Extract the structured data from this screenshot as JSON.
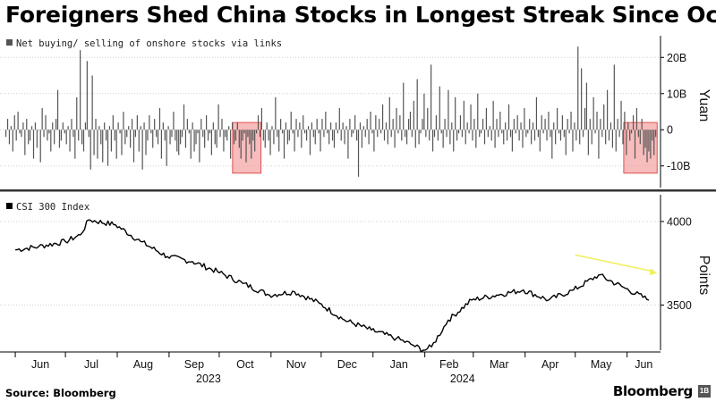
{
  "title": "Foreigners Shed China Stocks in Longest Streak Since Oct.",
  "source": "Source: Bloomberg",
  "brand": "Bloomberg",
  "brand_badge": "1B",
  "colors": {
    "bar": "#555555",
    "line": "#000000",
    "highlight_fill": "#f4a6a6",
    "highlight_stroke": "#e05050",
    "arrow": "#f0f060"
  },
  "chart_data": [
    {
      "type": "bar",
      "legend": "Net buying/ selling of onshore stocks via links",
      "ylabel": "Yuan",
      "ylim": [
        -16,
        26
      ],
      "yticks": [
        {
          "value": 20,
          "label": "20B"
        },
        {
          "value": 10,
          "label": "10B"
        },
        {
          "value": 0,
          "label": "0"
        },
        {
          "value": -10,
          "label": "-10B"
        }
      ],
      "series": [
        {
          "values": [
            -2,
            3,
            -4,
            1,
            -6,
            4,
            -3,
            5,
            -1,
            -2,
            2,
            -7,
            3,
            -4,
            -3,
            1,
            -8,
            2,
            -5,
            0,
            -9,
            6,
            -2,
            4,
            -3,
            -1,
            -6,
            2,
            -4,
            3,
            11,
            -5,
            -3,
            2,
            -1,
            -4,
            1,
            -6,
            3,
            -2,
            -8,
            9,
            -3,
            22,
            -4,
            -6,
            2,
            19,
            -2,
            -11,
            15,
            -7,
            3,
            -8,
            1,
            -4,
            -9,
            2,
            -3,
            -10,
            1,
            -6,
            4,
            -3,
            -8,
            2,
            -1,
            -7,
            5,
            -4,
            -2,
            1,
            -5,
            3,
            -9,
            -2,
            4,
            -6,
            1,
            -11,
            2,
            -7,
            -3,
            4,
            -1,
            -5,
            3,
            -2,
            -4,
            6,
            -8,
            2,
            -3,
            -10,
            1,
            -4,
            -2,
            5,
            -3,
            -6,
            -7,
            -4,
            -2,
            7,
            -5,
            3,
            -1,
            -8,
            2,
            -6,
            -4,
            -1,
            -9,
            3,
            -2,
            -5,
            4,
            -3,
            -1,
            -7,
            2,
            -4,
            -5,
            7,
            -2,
            3,
            -6,
            -2,
            -3,
            1,
            -8,
            2,
            -4,
            -3,
            2,
            -5,
            -8,
            -3,
            -1,
            -9,
            -2,
            -4,
            -8,
            -3,
            -6,
            -1,
            4,
            -2,
            6,
            -3,
            -5,
            2,
            -3,
            -7,
            1,
            -4,
            9,
            -2,
            -6,
            3,
            -1,
            -8,
            2,
            -4,
            -3,
            5,
            -1,
            -6,
            3,
            -2,
            2,
            -5,
            4,
            -1,
            -3,
            1,
            -7,
            2,
            -2,
            -4,
            3,
            -1,
            -6,
            3,
            -2,
            5,
            -1,
            -4,
            2,
            -3,
            -5,
            2,
            -1,
            6,
            -3,
            2,
            -4,
            1,
            -8,
            3,
            -2,
            -1,
            4,
            -3,
            -13,
            2,
            -5,
            1,
            -2,
            3,
            -4,
            5,
            -1,
            -6,
            4,
            -2,
            3,
            -1,
            7,
            -3,
            2,
            -4,
            9,
            -2,
            3,
            -5,
            6,
            -1,
            4,
            -3,
            13,
            -2,
            -4,
            3,
            5,
            -2,
            8,
            -5,
            14,
            -4,
            -1,
            3,
            10,
            -2,
            6,
            -3,
            18,
            -6,
            -2,
            4,
            -3,
            12,
            -1,
            -5,
            3,
            -2,
            11,
            -4,
            2,
            -6,
            9,
            -3,
            -1,
            4,
            -2,
            8,
            -4,
            2,
            -1,
            7,
            -3,
            3,
            -5,
            10,
            -2,
            -1,
            3,
            -4,
            6,
            -2,
            1,
            -3,
            8,
            -5,
            3,
            -2,
            5,
            -1,
            -4,
            2,
            -3,
            7,
            -2,
            -6,
            3,
            -1,
            4,
            -3,
            2,
            -5,
            6,
            -2,
            -1,
            3,
            -4,
            2,
            -3,
            9,
            -2,
            -6,
            4,
            -1,
            3,
            -3,
            5,
            -2,
            -8,
            2,
            -4,
            6,
            -1,
            -3,
            4,
            -2,
            -7,
            3,
            -1,
            5,
            -6,
            2,
            -3,
            23,
            -4,
            17,
            -2,
            6,
            13,
            -7,
            3,
            -4,
            9,
            -1,
            5,
            -8,
            3,
            -2,
            7,
            -4,
            11,
            -3,
            2,
            -5,
            18,
            -6,
            3,
            -2,
            8,
            -4,
            5,
            -7,
            2,
            -3,
            -1,
            4,
            -8,
            6,
            -2,
            -4,
            3,
            -7,
            -5,
            -9,
            -6,
            -8,
            -3,
            -7,
            -2
          ]
        }
      ],
      "highlights": [
        {
          "x_range": [
            "2023-10-09",
            "2023-10-26"
          ],
          "label": ""
        },
        {
          "x_range": [
            "2024-05-30",
            "2024-06-19"
          ],
          "label": ""
        }
      ]
    },
    {
      "type": "line",
      "legend": "CSI 300 Index",
      "ylabel": "Points",
      "ylim": [
        3230,
        4160
      ],
      "yticks": [
        {
          "value": 4000,
          "label": "4000"
        },
        {
          "value": 3500,
          "label": "3500"
        }
      ],
      "x": [
        "2023-06-01",
        "2023-06-15",
        "2023-07-01",
        "2023-07-10",
        "2023-07-15",
        "2023-07-31",
        "2023-08-15",
        "2023-08-31",
        "2023-09-15",
        "2023-09-30",
        "2023-10-15",
        "2023-10-31",
        "2023-11-15",
        "2023-11-30",
        "2023-12-15",
        "2023-12-31",
        "2024-01-15",
        "2024-01-25",
        "2024-01-31",
        "2024-02-05",
        "2024-02-15",
        "2024-02-29",
        "2024-03-15",
        "2024-03-31",
        "2024-04-15",
        "2024-04-30",
        "2024-05-15",
        "2024-05-31",
        "2024-06-14"
      ],
      "values": [
        3830,
        3850,
        3880,
        3920,
        4010,
        3980,
        3880,
        3790,
        3760,
        3700,
        3630,
        3560,
        3580,
        3510,
        3410,
        3350,
        3300,
        3260,
        3230,
        3250,
        3410,
        3530,
        3560,
        3590,
        3530,
        3590,
        3680,
        3600,
        3530
      ],
      "annotations": [
        {
          "type": "arrow",
          "from": [
            "2024-05-01",
            3800
          ],
          "to": [
            "2024-06-19",
            3690
          ]
        }
      ]
    }
  ],
  "x_axis": {
    "range": [
      "2023-05-25",
      "2024-06-21"
    ],
    "months": [
      {
        "label": "Jun",
        "date": "2023-06-01"
      },
      {
        "label": "Jul",
        "date": "2023-07-01"
      },
      {
        "label": "Aug",
        "date": "2023-08-01"
      },
      {
        "label": "Sep",
        "date": "2023-09-01"
      },
      {
        "label": "Oct",
        "date": "2023-10-01"
      },
      {
        "label": "Nov",
        "date": "2023-11-01"
      },
      {
        "label": "Dec",
        "date": "2023-12-01"
      },
      {
        "label": "Jan",
        "date": "2024-01-01"
      },
      {
        "label": "Feb",
        "date": "2024-02-01"
      },
      {
        "label": "Mar",
        "date": "2024-03-01"
      },
      {
        "label": "Apr",
        "date": "2024-04-01"
      },
      {
        "label": "May",
        "date": "2024-05-01"
      },
      {
        "label": "Jun",
        "date": "2024-06-01"
      }
    ],
    "years": [
      {
        "label": "2023",
        "date": "2023-10-01"
      },
      {
        "label": "2024",
        "date": "2024-03-01"
      }
    ]
  }
}
